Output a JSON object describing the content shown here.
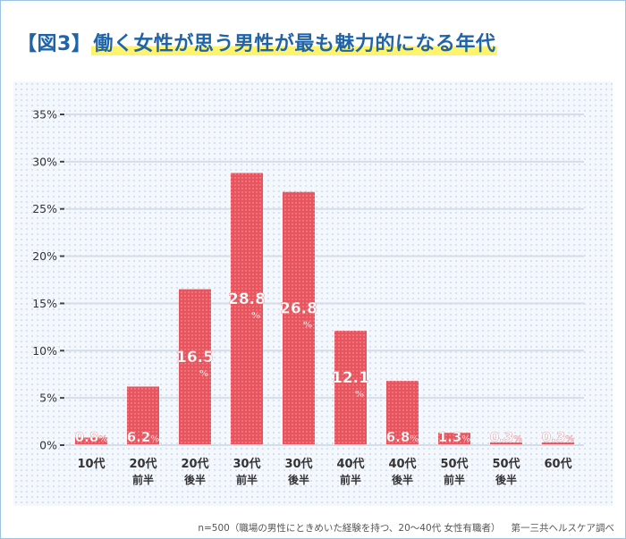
{
  "title": {
    "prefix": "【図3】",
    "main": "働く女性が思う男性が最も魅力的になる年代"
  },
  "footnote": {
    "sample": "n=500（職場の男性にときめいた経験を持つ、20〜40代 女性有職者）",
    "source": "第一三共ヘルスケア調べ"
  },
  "colors": {
    "bar": "#e8555f",
    "title": "#1f64a8",
    "highlight": "#fff36b",
    "grid": "#d7dde7"
  },
  "chart_data": {
    "type": "bar",
    "categories": [
      [
        "10代",
        ""
      ],
      [
        "20代",
        "前半"
      ],
      [
        "20代",
        "後半"
      ],
      [
        "30代",
        "前半"
      ],
      [
        "30代",
        "後半"
      ],
      [
        "40代",
        "前半"
      ],
      [
        "40代",
        "後半"
      ],
      [
        "50代",
        "前半"
      ],
      [
        "50代",
        "後半"
      ],
      [
        "60代",
        ""
      ]
    ],
    "values": [
      0.8,
      6.2,
      16.5,
      28.8,
      26.8,
      12.1,
      6.8,
      1.3,
      0.3,
      0.3
    ],
    "value_labels": [
      "0.8",
      "6.2",
      "16.5",
      "28.8",
      "26.8",
      "12.1",
      "6.8",
      "1.3",
      "0.3",
      "0.3"
    ],
    "value_unit": "%",
    "ylim": [
      0,
      35
    ],
    "yticks": [
      0,
      5,
      10,
      15,
      20,
      25,
      30,
      35
    ],
    "ytick_labels": [
      "0%",
      "5%",
      "10%",
      "15%",
      "20%",
      "25%",
      "30%",
      "35%"
    ],
    "grid": true
  }
}
